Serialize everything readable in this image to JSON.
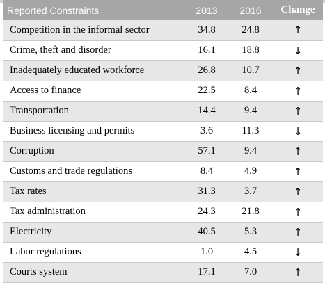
{
  "table": {
    "headers": [
      "Reported Constraints",
      "2013",
      "2016",
      "Change"
    ],
    "rows": [
      {
        "constraint": "Competition in the informal sector",
        "y2013": "34.8",
        "y2016": "24.8",
        "change": "↑"
      },
      {
        "constraint": "Crime, theft and disorder",
        "y2013": "16.1",
        "y2016": "18.8",
        "change": "↓"
      },
      {
        "constraint": "Inadequately educated workforce",
        "y2013": "26.8",
        "y2016": "10.7",
        "change": "↑"
      },
      {
        "constraint": "Access to finance",
        "y2013": "22.5",
        "y2016": "8.4",
        "change": "↑"
      },
      {
        "constraint": "Transportation",
        "y2013": "14.4",
        "y2016": "9.4",
        "change": "↑"
      },
      {
        "constraint": "Business licensing and permits",
        "y2013": "3.6",
        "y2016": "11.3",
        "change": "↓"
      },
      {
        "constraint": "Corruption",
        "y2013": "57.1",
        "y2016": "9.4",
        "change": "↑"
      },
      {
        "constraint": "Customs and trade regulations",
        "y2013": "8.4",
        "y2016": "4.9",
        "change": "↑"
      },
      {
        "constraint": "Tax rates",
        "y2013": "31.3",
        "y2016": "3.7",
        "change": "↑"
      },
      {
        "constraint": "Tax administration",
        "y2013": "24.3",
        "y2016": "21.8",
        "change": "↑"
      },
      {
        "constraint": "Electricity",
        "y2013": "40.5",
        "y2016": "5.3",
        "change": "↑"
      },
      {
        "constraint": "Labor regulations",
        "y2013": "1.0",
        "y2016": "4.5",
        "change": "↓"
      },
      {
        "constraint": "Courts system",
        "y2013": "17.1",
        "y2016": "7.0",
        "change": "↑"
      }
    ]
  }
}
